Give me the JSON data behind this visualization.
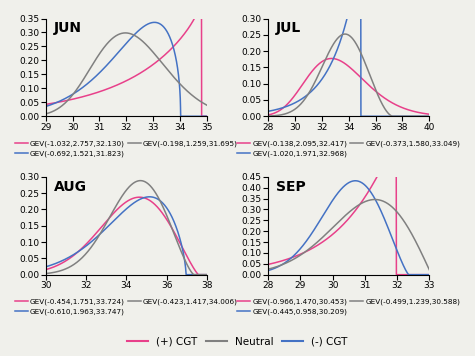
{
  "subplots": [
    {
      "title": "JUN",
      "xlim": [
        29,
        35
      ],
      "ylim": [
        0,
        0.35
      ],
      "yticks": [
        0,
        0.05,
        0.1,
        0.15,
        0.2,
        0.25,
        0.3,
        0.35
      ],
      "xticks": [
        29,
        30,
        31,
        32,
        33,
        34,
        35
      ],
      "curves": [
        {
          "xi": -1.032,
          "sigma": 2.757,
          "mu": 32.13,
          "color": "#e8408a",
          "label": "GEV(-1.032,2.757,32.130)"
        },
        {
          "xi": -0.692,
          "sigma": 1.521,
          "mu": 31.823,
          "color": "#4472c4",
          "label": "GEV(-0.692,1.521,31.823)"
        },
        {
          "xi": -0.198,
          "sigma": 1.259,
          "mu": 31.695,
          "color": "#808080",
          "label": "GEV(-0.198,1.259,31.695)"
        }
      ]
    },
    {
      "title": "JUL",
      "xlim": [
        28,
        40
      ],
      "ylim": [
        0,
        0.3
      ],
      "yticks": [
        0,
        0.05,
        0.1,
        0.15,
        0.2,
        0.25,
        0.3
      ],
      "xticks": [
        28,
        30,
        32,
        34,
        36,
        38,
        40
      ],
      "curves": [
        {
          "xi": -0.138,
          "sigma": 2.095,
          "mu": 32.417,
          "color": "#e8408a",
          "label": "GEV(-0.138,2.095,32.417)"
        },
        {
          "xi": -1.02,
          "sigma": 1.971,
          "mu": 32.968,
          "color": "#4472c4",
          "label": "GEV(-1.020,1.971,32.968)"
        },
        {
          "xi": -0.373,
          "sigma": 1.58,
          "mu": 33.049,
          "color": "#808080",
          "label": "GEV(-0.373,1.580,33.049)"
        }
      ]
    },
    {
      "title": "AUG",
      "xlim": [
        30,
        38
      ],
      "ylim": [
        0,
        0.3
      ],
      "yticks": [
        0,
        0.05,
        0.1,
        0.15,
        0.2,
        0.25,
        0.3
      ],
      "xticks": [
        30,
        32,
        34,
        36,
        38
      ],
      "curves": [
        {
          "xi": -0.454,
          "sigma": 1.751,
          "mu": 33.724,
          "color": "#e8408a",
          "label": "GEV(-0.454,1.751,33.724)"
        },
        {
          "xi": -0.61,
          "sigma": 1.963,
          "mu": 33.747,
          "color": "#4472c4",
          "label": "GEV(-0.610,1.963,33.747)"
        },
        {
          "xi": -0.423,
          "sigma": 1.417,
          "mu": 34.006,
          "color": "#808080",
          "label": "GEV(-0.423,1.417,34.006)"
        }
      ]
    },
    {
      "title": "SEP",
      "xlim": [
        28,
        33
      ],
      "ylim": [
        0,
        0.45
      ],
      "yticks": [
        0,
        0.05,
        0.1,
        0.15,
        0.2,
        0.25,
        0.3,
        0.35,
        0.4,
        0.45
      ],
      "xticks": [
        28,
        29,
        30,
        31,
        32,
        33
      ],
      "curves": [
        {
          "xi": -0.966,
          "sigma": 1.47,
          "mu": 30.453,
          "color": "#e8408a",
          "label": "GEV(-0.966,1.470,30.453)"
        },
        {
          "xi": -0.445,
          "sigma": 0.958,
          "mu": 30.209,
          "color": "#4472c4",
          "label": "GEV(-0.445,0.958,30.209)"
        },
        {
          "xi": -0.499,
          "sigma": 1.239,
          "mu": 30.588,
          "color": "#808080",
          "label": "GEV(-0.499,1.239,30.588)"
        }
      ]
    }
  ],
  "legend": [
    {
      "label": "(+) CGT",
      "color": "#e8408a"
    },
    {
      "label": "Neutral",
      "color": "#808080"
    },
    {
      "label": "(-) CGT",
      "color": "#4472c4"
    }
  ],
  "background_color": "#f0f0eb",
  "title_fontsize": 10,
  "tick_fontsize": 6.5,
  "sub_legend_fontsize": 5.2,
  "main_legend_fontsize": 7.5
}
